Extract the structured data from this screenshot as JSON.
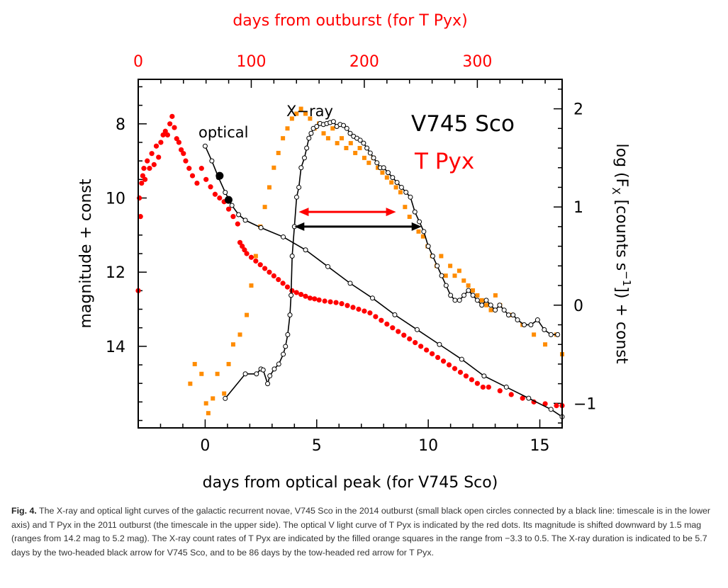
{
  "chart_data": {
    "type": "scatter",
    "labels": {
      "top_axis_title": "days from outburst (for T Pyx)",
      "bottom_axis_title": "days from optical peak (for V745 Sco)",
      "left_axis_title": "magnitude + const",
      "right_axis_title": "log (F",
      "right_axis_title_sub": "X",
      "right_axis_title_tail": " [counts s",
      "right_axis_title_sup": "−1",
      "right_axis_title_end": "]) + const",
      "annotation_optical": "optical",
      "annotation_xray": "X−ray",
      "legend_v745": "V745 Sco",
      "legend_tpyx": "T Pyx"
    },
    "axes": {
      "bottom": {
        "range": [
          -3,
          16
        ],
        "ticks": [
          0,
          5,
          10,
          15
        ]
      },
      "top": {
        "range": [
          0,
          375
        ],
        "ticks": [
          0,
          100,
          200,
          300
        ]
      },
      "left": {
        "range": [
          16.2,
          6.8
        ],
        "ticks": [
          8,
          10,
          12,
          14
        ],
        "inverted": true
      },
      "right": {
        "range": [
          -1.25,
          2.3
        ],
        "ticks": [
          -1,
          0,
          1,
          2
        ],
        "tick_labels": [
          "−1",
          "0",
          "1",
          "2"
        ]
      }
    },
    "colors": {
      "v745": "#000000",
      "tpyx_optical": "#ff0000",
      "tpyx_xray": "#ff8c00",
      "axis": "#000000",
      "top_axis": "#ff0000"
    },
    "series": [
      {
        "name": "V745 Sco",
        "marker": "open circle + line",
        "axis": "bottom-right",
        "x": [
          0.9,
          1.8,
          2.3,
          2.5,
          2.6,
          2.8,
          2.9,
          3.1,
          3.3,
          3.5,
          3.6,
          3.7,
          3.8,
          3.85,
          3.9,
          4.0,
          4.1,
          4.2,
          4.3,
          4.45,
          4.55,
          4.65,
          4.75,
          4.85,
          5.0,
          5.15,
          5.3,
          5.45,
          5.6,
          5.75,
          5.9,
          6.05,
          6.2,
          6.35,
          6.5,
          6.65,
          6.8,
          6.95,
          7.1,
          7.25,
          7.4,
          7.55,
          7.7,
          7.85,
          8.0,
          8.2,
          8.4,
          8.6,
          8.8,
          9.0,
          9.2,
          9.4,
          9.6,
          9.8,
          10.0,
          10.2,
          10.4,
          10.6,
          10.8,
          11.0,
          11.2,
          11.4,
          11.6,
          11.8,
          12.0,
          12.2,
          12.4,
          12.6,
          12.8,
          13.0,
          13.2,
          13.4,
          13.6,
          13.8,
          14.0,
          14.3,
          14.6,
          14.9,
          15.2,
          15.5,
          15.8
        ],
        "y": [
          -0.95,
          -0.7,
          -0.7,
          -0.65,
          -0.66,
          -0.8,
          -0.72,
          -0.65,
          -0.6,
          -0.5,
          -0.42,
          -0.3,
          -0.1,
          0.1,
          0.5,
          0.8,
          1.1,
          1.2,
          1.4,
          1.5,
          1.6,
          1.7,
          1.75,
          1.8,
          1.82,
          1.85,
          1.84,
          1.85,
          1.86,
          1.87,
          1.82,
          1.84,
          1.83,
          1.8,
          1.75,
          1.72,
          1.7,
          1.68,
          1.65,
          1.6,
          1.55,
          1.5,
          1.45,
          1.4,
          1.4,
          1.35,
          1.3,
          1.25,
          1.2,
          1.15,
          1.1,
          0.95,
          0.85,
          0.75,
          0.6,
          0.5,
          0.4,
          0.3,
          0.2,
          0.1,
          0.05,
          0.05,
          0.1,
          0.15,
          0.1,
          0.05,
          0.0,
          0.05,
          0.0,
          -0.05,
          0.0,
          -0.05,
          -0.1,
          -0.1,
          -0.15,
          -0.2,
          -0.2,
          -0.15,
          -0.25,
          -0.3,
          -0.3
        ]
      },
      {
        "name": "V745 Sco",
        "marker": "open circle + line",
        "axis": "bottom-left",
        "x": [
          0.0,
          0.3,
          0.6,
          0.9,
          1.2,
          1.5,
          1.8,
          2.5,
          3.5,
          4.5,
          5.5,
          6.5,
          7.5,
          8.5,
          9.5,
          10.5,
          11.5,
          12.5,
          13.5,
          14.5,
          15.5,
          16.0
        ],
        "y": [
          8.6,
          9.0,
          9.45,
          9.85,
          10.2,
          10.45,
          10.6,
          10.8,
          11.05,
          11.4,
          11.85,
          12.3,
          12.7,
          13.15,
          13.55,
          13.95,
          14.35,
          14.8,
          15.1,
          15.4,
          15.7,
          15.9
        ]
      },
      {
        "name": "V745 Sco",
        "marker": "filled circle",
        "axis": "bottom-left",
        "x": [
          0.65,
          1.05
        ],
        "y": [
          9.4,
          10.05
        ]
      },
      {
        "name": "T Pyx",
        "marker": "filled red dot",
        "axis": "top-left",
        "x": [
          0,
          1,
          2,
          3,
          4,
          5,
          6,
          8,
          10,
          12,
          14,
          16,
          18,
          20,
          22,
          24,
          26,
          28,
          30,
          32,
          34,
          36,
          38,
          40,
          42,
          45,
          48,
          52,
          56,
          60,
          64,
          68,
          72,
          76,
          80,
          84,
          88,
          90,
          92,
          94,
          96,
          100,
          104,
          108,
          112,
          116,
          120,
          124,
          128,
          132,
          136,
          140,
          144,
          148,
          152,
          156,
          160,
          165,
          170,
          175,
          180,
          185,
          190,
          195,
          200,
          205,
          210,
          215,
          220,
          225,
          230,
          235,
          240,
          245,
          250,
          255,
          260,
          265,
          270,
          275,
          280,
          285,
          290,
          295,
          300,
          305,
          310,
          320,
          330,
          340,
          350,
          360,
          370,
          375
        ],
        "y": [
          12.5,
          10.0,
          10.5,
          9.6,
          9.4,
          9.2,
          9.5,
          9.0,
          9.2,
          8.8,
          9.1,
          8.6,
          8.9,
          8.5,
          8.3,
          8.2,
          8.3,
          8.0,
          7.8,
          8.1,
          8.4,
          8.5,
          8.7,
          8.8,
          9.0,
          9.2,
          9.4,
          9.6,
          9.2,
          9.5,
          9.7,
          9.9,
          10.0,
          10.1,
          10.3,
          10.5,
          10.7,
          11.2,
          11.3,
          11.4,
          11.5,
          11.6,
          11.7,
          11.8,
          11.9,
          12.0,
          12.1,
          12.2,
          12.3,
          12.4,
          12.5,
          12.55,
          12.6,
          12.65,
          12.7,
          12.72,
          12.75,
          12.78,
          12.8,
          12.82,
          12.85,
          12.9,
          12.95,
          13.0,
          13.05,
          13.1,
          13.2,
          13.3,
          13.4,
          13.5,
          13.6,
          13.7,
          13.8,
          13.9,
          14.0,
          14.1,
          14.2,
          14.3,
          14.4,
          14.5,
          14.6,
          14.7,
          14.8,
          14.9,
          15.0,
          15.1,
          15.1,
          15.2,
          15.3,
          15.4,
          15.5,
          15.55,
          15.6,
          15.6
        ]
      },
      {
        "name": "T Pyx",
        "marker": "filled orange square",
        "axis": "top-right",
        "x": [
          46,
          50,
          56,
          60,
          62,
          66,
          70,
          76,
          80,
          84,
          90,
          96,
          100,
          104,
          108,
          112,
          116,
          120,
          124,
          128,
          132,
          136,
          140,
          144,
          148,
          152,
          156,
          160,
          164,
          168,
          172,
          176,
          180,
          184,
          188,
          192,
          196,
          200,
          204,
          208,
          212,
          216,
          220,
          224,
          228,
          232,
          236,
          240,
          244,
          248,
          252,
          256,
          260,
          264,
          268,
          272,
          276,
          280,
          284,
          288,
          292,
          296,
          300,
          304,
          308,
          312,
          316,
          320,
          330,
          340,
          350,
          360,
          370,
          375
        ],
        "y": [
          -0.8,
          -0.6,
          -0.7,
          -1.0,
          -1.1,
          -0.95,
          -0.7,
          -0.9,
          -0.6,
          -0.4,
          -0.3,
          -0.1,
          0.2,
          0.5,
          0.8,
          1.0,
          1.2,
          1.4,
          1.55,
          1.7,
          1.8,
          1.9,
          1.95,
          2.0,
          1.95,
          1.9,
          1.8,
          1.85,
          1.75,
          1.7,
          1.8,
          1.65,
          1.7,
          1.6,
          1.65,
          1.55,
          1.6,
          1.5,
          1.45,
          1.5,
          1.4,
          1.35,
          1.3,
          1.25,
          1.2,
          1.15,
          1.0,
          0.9,
          0.8,
          0.75,
          0.7,
          0.6,
          0.5,
          0.4,
          0.5,
          0.3,
          0.4,
          0.3,
          0.35,
          0.25,
          0.2,
          0.15,
          0.1,
          0.05,
          0.0,
          -0.05,
          0.1,
          0.0,
          -0.1,
          -0.2,
          -0.3,
          -0.4,
          -0.3,
          -0.5
        ]
      }
    ],
    "arrows": [
      {
        "name": "V745 Sco X-ray duration",
        "axis": "bottom-right",
        "x": [
          4.0,
          9.7
        ],
        "y": 0.8,
        "color": "#000000"
      },
      {
        "name": "T Pyx X-ray duration",
        "axis": "top-right",
        "x": [
          142,
          228
        ],
        "y": 0.95,
        "color": "#ff0000"
      }
    ]
  },
  "caption": {
    "label": "Fig. 4.",
    "text": " The X-ray and optical light curves of the galactic recurrent novae, V745 Sco in the 2014 outburst (small black open circles connected by a black line: timescale is in the lower axis) and T Pyx in the 2011 outburst (the timescale in the upper side). The optical V light curve of T Pyx is indicated by the red dots. Its magnitude is shifted downward by 1.5 mag (ranges from 14.2 mag to 5.2 mag). The X-ray count rates of T Pyx are indicated by the filled orange squares in the range from −3.3 to 0.5. The X-ray duration is indicated to be 5.7 days by the two-headed black arrow for V745 Sco, and to be 86 days by the tow-headed red arrow for T Pyx."
  }
}
